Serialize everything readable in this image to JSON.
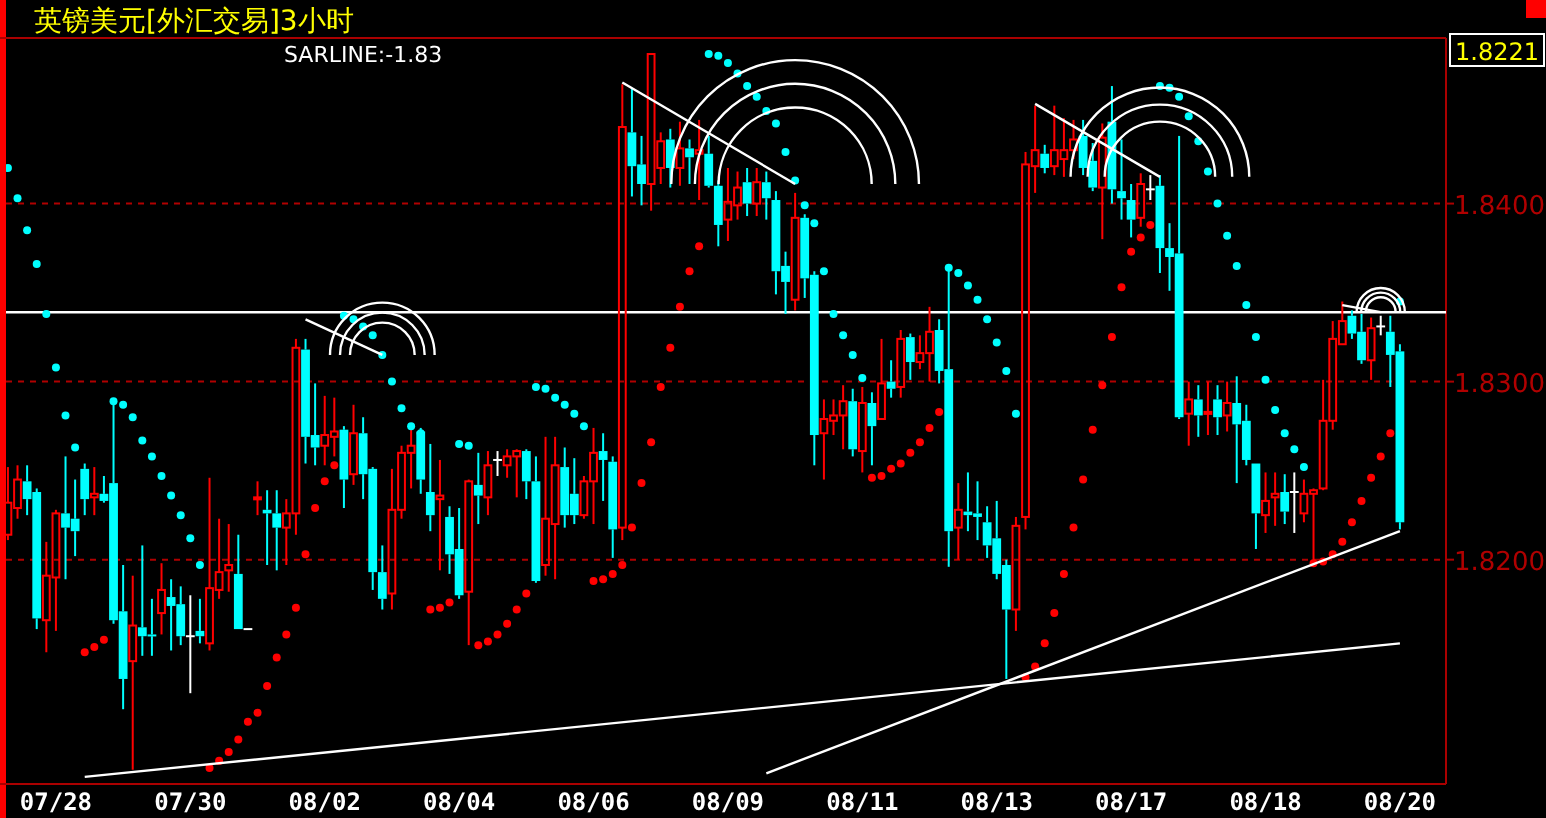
{
  "chart_data": {
    "type": "candlestick",
    "title": "英镑美元[外汇交易]3小时",
    "annotations": [
      "SARLINE:-1.83",
      "1.8221"
    ],
    "colors": [
      "#ff0000",
      "#ff0000",
      "#00ffff",
      "#00ffff",
      "#ff0000",
      "#ff0000",
      "#00ffff",
      "#00ffff",
      "#00ffff",
      "#ff0000",
      "#00ffff",
      "#00ffff",
      "#00ffff",
      "#ff0000",
      "#00ffff",
      "#00ffff",
      "#ff0000",
      "#00ffff",
      "#00ffff",
      "#ffffff",
      "#00ffff",
      "#ff0000",
      "#ff0000",
      "#ff0000",
      "#00ffff",
      "#ffffff",
      "#ff0000",
      "#00ffff",
      "#00ffff",
      "#ff0000",
      "#ff0000",
      "#00ffff",
      "#00ffff",
      "#ff0000",
      "#ff0000",
      "#00ffff",
      "#ff0000",
      "#00ffff",
      "#00ffff",
      "#00ffff",
      "#ff0000",
      "#ff0000",
      "#ff0000",
      "#00ffff",
      "#00ffff",
      "#ff0000",
      "#00ffff",
      "#00ffff",
      "#ff0000",
      "#00ffff",
      "#ff0000",
      "#ffffff",
      "#ff0000",
      "#ff0000",
      "#00ffff",
      "#00ffff",
      "#ff0000",
      "#ff0000",
      "#00ffff",
      "#00ffff",
      "#ff0000",
      "#ff0000",
      "#00ffff",
      "#00ffff",
      "#ff0000",
      "#00ffff",
      "#00ffff",
      "#ff0000",
      "#ff0000",
      "#00ffff",
      "#ff0000",
      "#00ffff",
      "#ff0000",
      "#00ffff",
      "#00ffff",
      "#ff0000",
      "#ff0000",
      "#00ffff",
      "#ff0000",
      "#00ffff",
      "#00ffff",
      "#00ffff",
      "#ff0000",
      "#00ffff",
      "#00ffff",
      "#ff0000",
      "#ff0000",
      "#ff0000",
      "#00ffff",
      "#ff0000",
      "#00ffff",
      "#ff0000",
      "#00ffff",
      "#ff0000",
      "#00ffff",
      "#ff0000",
      "#ff0000",
      "#00ffff",
      "#00ffff",
      "#ff0000",
      "#00ffff",
      "#00ffff",
      "#00ffff",
      "#00ffff",
      "#00ffff",
      "#ff0000",
      "#ff0000",
      "#ff0000",
      "#00ffff",
      "#ff0000",
      "#ff0000",
      "#ff0000",
      "#00ffff",
      "#00ffff",
      "#ff0000",
      "#00ffff",
      "#00ffff",
      "#00ffff",
      "#ff0000",
      "#ffffff",
      "#00ffff",
      "#00ffff",
      "#00ffff",
      "#ff0000",
      "#00ffff",
      "#ff0000",
      "#00ffff",
      "#ff0000",
      "#00ffff",
      "#00ffff",
      "#00ffff",
      "#ff0000",
      "#ff0000",
      "#00ffff",
      "#ffffff",
      "#ff0000",
      "#ff0000",
      "#ff0000",
      "#ff0000",
      "#ff0000",
      "#00ffff",
      "#00ffff",
      "#ff0000",
      "#ffffff",
      "#00ffff",
      "#00ffff"
    ],
    "ylim": [
      1.8074,
      1.8493
    ],
    "categories": [
      null,
      null,
      null,
      null,
      null,
      "07/28",
      null,
      null,
      null,
      null,
      null,
      null,
      null,
      null,
      null,
      null,
      null,
      null,
      null,
      "07/30",
      null,
      null,
      null,
      null,
      null,
      null,
      null,
      null,
      null,
      null,
      null,
      null,
      null,
      "08/02",
      null,
      null,
      null,
      null,
      null,
      null,
      null,
      null,
      null,
      null,
      null,
      null,
      null,
      "08/04",
      null,
      null,
      null,
      null,
      null,
      null,
      null,
      null,
      null,
      null,
      null,
      null,
      null,
      "08/06",
      null,
      null,
      null,
      null,
      null,
      null,
      null,
      null,
      null,
      null,
      null,
      null,
      null,
      "08/09",
      null,
      null,
      null,
      null,
      null,
      null,
      null,
      null,
      null,
      null,
      null,
      null,
      null,
      "08/11",
      null,
      null,
      null,
      null,
      null,
      null,
      null,
      null,
      null,
      null,
      null,
      null,
      null,
      "08/13",
      null,
      null,
      null,
      null,
      null,
      null,
      null,
      null,
      null,
      null,
      null,
      null,
      null,
      "08/17",
      null,
      null,
      null,
      null,
      null,
      null,
      null,
      null,
      null,
      null,
      null,
      null,
      null,
      "08/18",
      null,
      null,
      null,
      null,
      null,
      null,
      null,
      null,
      null,
      null,
      null,
      null,
      null,
      "08/20"
    ],
    "yticks": [
      {
        "value": 1.82,
        "label": "1.8200"
      },
      {
        "value": 1.83,
        "label": "1.8300"
      },
      {
        "value": 1.84,
        "label": "1.8400"
      }
    ],
    "grid": "y",
    "ref_lines": [
      {
        "axis": "y",
        "value": 1.8339,
        "color": "#ffffff"
      }
    ],
    "ohlc": [
      [
        1.8214,
        1.8252,
        1.8211,
        1.8232
      ],
      [
        1.8229,
        1.8253,
        1.8223,
        1.8245
      ],
      [
        1.8244,
        1.8253,
        1.8225,
        1.8234
      ],
      [
        1.8238,
        1.824,
        1.8161,
        1.8167
      ],
      [
        1.8166,
        1.821,
        1.8148,
        1.8191
      ],
      [
        1.819,
        1.8228,
        1.816,
        1.8226
      ],
      [
        1.8226,
        1.8258,
        1.8189,
        1.8218
      ],
      [
        1.8223,
        1.8245,
        1.8202,
        1.8216
      ],
      [
        1.8251,
        1.8254,
        1.8225,
        1.8234
      ],
      [
        1.8235,
        1.8252,
        1.8225,
        1.8237
      ],
      [
        1.8237,
        1.8247,
        1.8232,
        1.8233
      ],
      [
        1.8243,
        1.829,
        1.8164,
        1.8166
      ],
      [
        1.8171,
        1.8197,
        1.8116,
        1.8133
      ],
      [
        1.8143,
        1.8191,
        1.8082,
        1.8163
      ],
      [
        1.8162,
        1.8208,
        1.8146,
        1.8157
      ],
      [
        1.8158,
        1.8178,
        1.8146,
        1.8157
      ],
      [
        1.817,
        1.8198,
        1.8158,
        1.8183
      ],
      [
        1.8179,
        1.8189,
        1.8149,
        1.8174
      ],
      [
        1.8175,
        1.8185,
        1.8152,
        1.8157
      ],
      [
        1.8157,
        1.818,
        1.8125,
        1.8157
      ],
      [
        1.816,
        1.8178,
        1.8153,
        1.8157
      ],
      [
        1.8153,
        1.8246,
        1.8149,
        1.8184
      ],
      [
        1.8183,
        1.8223,
        1.8178,
        1.8193
      ],
      [
        1.8194,
        1.822,
        1.8182,
        1.8197
      ],
      [
        1.8192,
        1.8214,
        1.8161,
        1.8161
      ],
      [
        1.8161,
        1.8161,
        1.8161,
        1.8161
      ],
      [
        1.8234,
        1.8244,
        1.8225,
        1.8235
      ],
      [
        1.8228,
        1.8239,
        1.8197,
        1.8226
      ],
      [
        1.8226,
        1.8239,
        1.8194,
        1.8218
      ],
      [
        1.8218,
        1.8234,
        1.8197,
        1.8226
      ],
      [
        1.8226,
        1.8324,
        1.8214,
        1.8319
      ],
      [
        1.8318,
        1.8324,
        1.8254,
        1.8269
      ],
      [
        1.827,
        1.8299,
        1.8253,
        1.8263
      ],
      [
        1.8264,
        1.8292,
        1.8253,
        1.827
      ],
      [
        1.8269,
        1.8291,
        1.8258,
        1.8272
      ],
      [
        1.8273,
        1.8275,
        1.8229,
        1.8245
      ],
      [
        1.8248,
        1.8287,
        1.8242,
        1.8271
      ],
      [
        1.8271,
        1.828,
        1.8234,
        1.8248
      ],
      [
        1.8251,
        1.8252,
        1.8183,
        1.8193
      ],
      [
        1.8193,
        1.8208,
        1.8172,
        1.8178
      ],
      [
        1.8181,
        1.8251,
        1.8172,
        1.8228
      ],
      [
        1.8228,
        1.8264,
        1.8223,
        1.826
      ],
      [
        1.826,
        1.8275,
        1.824,
        1.8264
      ],
      [
        1.8272,
        1.8274,
        1.8237,
        1.8245
      ],
      [
        1.8238,
        1.8265,
        1.8216,
        1.8225
      ],
      [
        1.8234,
        1.8256,
        1.8194,
        1.8236
      ],
      [
        1.8224,
        1.823,
        1.8192,
        1.8203
      ],
      [
        1.8206,
        1.8229,
        1.8178,
        1.818
      ],
      [
        1.8182,
        1.8245,
        1.8152,
        1.8244
      ],
      [
        1.8242,
        1.826,
        1.822,
        1.8236
      ],
      [
        1.8235,
        1.8261,
        1.8225,
        1.8253
      ],
      [
        1.8256,
        1.8261,
        1.8247,
        1.8256
      ],
      [
        1.8253,
        1.8262,
        1.8246,
        1.8258
      ],
      [
        1.8258,
        1.8262,
        1.8235,
        1.8261
      ],
      [
        1.8261,
        1.8262,
        1.8234,
        1.8244
      ],
      [
        1.8244,
        1.8258,
        1.8187,
        1.8188
      ],
      [
        1.8197,
        1.8269,
        1.8191,
        1.8223
      ],
      [
        1.822,
        1.8269,
        1.8189,
        1.8253
      ],
      [
        1.8252,
        1.8263,
        1.8218,
        1.8225
      ],
      [
        1.8237,
        1.8257,
        1.822,
        1.8225
      ],
      [
        1.8225,
        1.8247,
        1.8223,
        1.8244
      ],
      [
        1.8244,
        1.8274,
        1.822,
        1.826
      ],
      [
        1.8261,
        1.8271,
        1.8233,
        1.8256
      ],
      [
        1.8255,
        1.8258,
        1.8201,
        1.8217
      ],
      [
        1.8218,
        1.8467,
        1.8211,
        1.8443
      ],
      [
        1.844,
        1.8465,
        1.8404,
        1.8421
      ],
      [
        1.8422,
        1.8438,
        1.8399,
        1.8411
      ],
      [
        1.8411,
        1.8484,
        1.8396,
        1.8484
      ],
      [
        1.842,
        1.844,
        1.8411,
        1.8435
      ],
      [
        1.8436,
        1.8442,
        1.8409,
        1.842
      ],
      [
        1.842,
        1.8446,
        1.841,
        1.8431
      ],
      [
        1.8431,
        1.8436,
        1.8411,
        1.8426
      ],
      [
        1.8428,
        1.8447,
        1.8402,
        1.843
      ],
      [
        1.8428,
        1.8438,
        1.8409,
        1.841
      ],
      [
        1.841,
        1.8413,
        1.8376,
        1.8388
      ],
      [
        1.8391,
        1.842,
        1.8379,
        1.8401
      ],
      [
        1.8399,
        1.8418,
        1.8391,
        1.8409
      ],
      [
        1.8412,
        1.842,
        1.8393,
        1.84
      ],
      [
        1.84,
        1.842,
        1.8393,
        1.8412
      ],
      [
        1.8412,
        1.8418,
        1.8391,
        1.8403
      ],
      [
        1.8402,
        1.8407,
        1.8349,
        1.8362
      ],
      [
        1.8365,
        1.8373,
        1.8338,
        1.8356
      ],
      [
        1.8346,
        1.8406,
        1.834,
        1.8392
      ],
      [
        1.8392,
        1.8394,
        1.8347,
        1.8358
      ],
      [
        1.836,
        1.8362,
        1.8253,
        1.827
      ],
      [
        1.8271,
        1.829,
        1.8245,
        1.8279
      ],
      [
        1.8278,
        1.829,
        1.827,
        1.8281
      ],
      [
        1.8281,
        1.8298,
        1.8262,
        1.8289
      ],
      [
        1.8289,
        1.8296,
        1.8258,
        1.8262
      ],
      [
        1.8261,
        1.8297,
        1.8249,
        1.8288
      ],
      [
        1.8288,
        1.8294,
        1.8253,
        1.8275
      ],
      [
        1.8279,
        1.8324,
        1.8279,
        1.8299
      ],
      [
        1.83,
        1.8312,
        1.8291,
        1.8296
      ],
      [
        1.8297,
        1.8329,
        1.8291,
        1.8324
      ],
      [
        1.8325,
        1.8327,
        1.8301,
        1.8311
      ],
      [
        1.8311,
        1.8326,
        1.8307,
        1.8316
      ],
      [
        1.8316,
        1.8342,
        1.83,
        1.8328
      ],
      [
        1.8329,
        1.8335,
        1.8299,
        1.8306
      ],
      [
        1.8307,
        1.8365,
        1.8196,
        1.8216
      ],
      [
        1.8218,
        1.8243,
        1.82,
        1.8228
      ],
      [
        1.8227,
        1.8249,
        1.8216,
        1.8225
      ],
      [
        1.8226,
        1.8244,
        1.8211,
        1.8224
      ],
      [
        1.8221,
        1.823,
        1.8201,
        1.8208
      ],
      [
        1.8212,
        1.8233,
        1.8189,
        1.8192
      ],
      [
        1.8197,
        1.82,
        1.8133,
        1.8172
      ],
      [
        1.8172,
        1.8224,
        1.816,
        1.8219
      ],
      [
        1.8224,
        1.8429,
        1.8217,
        1.8422
      ],
      [
        1.8421,
        1.8455,
        1.8406,
        1.843
      ],
      [
        1.8428,
        1.8433,
        1.8417,
        1.842
      ],
      [
        1.8421,
        1.8455,
        1.8416,
        1.843
      ],
      [
        1.8425,
        1.8448,
        1.8415,
        1.843
      ],
      [
        1.843,
        1.8447,
        1.8425,
        1.8436
      ],
      [
        1.8438,
        1.8447,
        1.8416,
        1.842
      ],
      [
        1.8424,
        1.8434,
        1.8407,
        1.8409
      ],
      [
        1.8409,
        1.8445,
        1.838,
        1.8437
      ],
      [
        1.8446,
        1.8466,
        1.84,
        1.8408
      ],
      [
        1.8407,
        1.8436,
        1.8391,
        1.8403
      ],
      [
        1.8402,
        1.8411,
        1.8381,
        1.8391
      ],
      [
        1.8392,
        1.8417,
        1.8387,
        1.8411
      ],
      [
        1.8408,
        1.8416,
        1.8402,
        1.8408
      ],
      [
        1.841,
        1.8416,
        1.8361,
        1.8375
      ],
      [
        1.8375,
        1.8389,
        1.8351,
        1.837
      ],
      [
        1.8372,
        1.8438,
        1.8279,
        1.828
      ],
      [
        1.8282,
        1.83,
        1.8264,
        1.829
      ],
      [
        1.829,
        1.8298,
        1.8269,
        1.8281
      ],
      [
        1.8282,
        1.83,
        1.827,
        1.8283
      ],
      [
        1.829,
        1.8298,
        1.827,
        1.828
      ],
      [
        1.8281,
        1.83,
        1.8272,
        1.8288
      ],
      [
        1.8288,
        1.8303,
        1.8243,
        1.8276
      ],
      [
        1.8278,
        1.8287,
        1.8253,
        1.8256
      ],
      [
        1.8254,
        1.8254,
        1.8206,
        1.8226
      ],
      [
        1.8225,
        1.8249,
        1.8215,
        1.8233
      ],
      [
        1.8235,
        1.8249,
        1.8219,
        1.8237
      ],
      [
        1.8238,
        1.8248,
        1.822,
        1.8227
      ],
      [
        1.8238,
        1.8249,
        1.8215,
        1.8238
      ],
      [
        1.8226,
        1.8245,
        1.8221,
        1.8237
      ],
      [
        1.8237,
        1.824,
        1.8197,
        1.8239
      ],
      [
        1.824,
        1.8301,
        1.8239,
        1.8278
      ],
      [
        1.8278,
        1.8334,
        1.8273,
        1.8324
      ],
      [
        1.8321,
        1.8345,
        1.8321,
        1.8334
      ],
      [
        1.8337,
        1.834,
        1.8324,
        1.8327
      ],
      [
        1.8328,
        1.8338,
        1.831,
        1.8312
      ],
      [
        1.8312,
        1.8336,
        1.8301,
        1.833
      ],
      [
        1.8331,
        1.8337,
        1.8326,
        1.8331
      ],
      [
        1.8328,
        1.8337,
        1.8297,
        1.8315
      ],
      [
        1.8317,
        1.8321,
        1.8217,
        1.8221
      ]
    ],
    "series": [
      {
        "type": "scatter",
        "color": "#00ffff",
        "marker": "circle",
        "values": [
          1.842,
          1.8403,
          1.8385,
          1.8366,
          1.8338,
          1.8308,
          1.8281,
          1.8263,
          null,
          null,
          null,
          1.8289,
          1.8287,
          1.828,
          1.8267,
          1.8258,
          1.8247,
          1.8236,
          1.8225,
          1.8212,
          1.8197,
          null,
          null,
          null,
          null,
          null,
          null,
          null,
          null,
          null,
          null,
          null,
          null,
          null,
          null,
          1.8337,
          1.8335,
          1.8331,
          1.8326,
          1.8315,
          1.83,
          1.8285,
          1.8275,
          1.8271,
          null,
          null,
          null,
          1.8265,
          1.8264,
          null,
          null,
          null,
          null,
          null,
          null,
          1.8297,
          1.8296,
          1.8291,
          1.8287,
          1.8282,
          1.8275,
          null,
          null,
          null,
          null,
          null,
          null,
          null,
          null,
          null,
          null,
          null,
          null,
          1.8484,
          1.8483,
          1.8479,
          1.8473,
          1.8466,
          1.846,
          1.8452,
          1.8445,
          1.8429,
          1.8413,
          1.8399,
          1.8389,
          1.8362,
          1.8338,
          1.8326,
          1.8315,
          1.8302,
          null,
          null,
          null,
          null,
          null,
          null,
          null,
          null,
          1.8364,
          1.8361,
          1.8354,
          1.8346,
          1.8335,
          1.8322,
          1.8306,
          1.8282,
          null,
          null,
          null,
          null,
          null,
          null,
          null,
          null,
          null,
          null,
          null,
          null,
          null,
          null,
          1.8466,
          1.8465,
          1.846,
          1.8449,
          1.8435,
          1.8418,
          1.84,
          1.8382,
          1.8365,
          1.8343,
          1.8325,
          1.8301,
          1.8284,
          1.8271,
          1.8262,
          1.8252,
          null,
          null,
          null,
          null,
          null,
          null,
          null,
          null,
          null,
          1.8345
        ]
      },
      {
        "type": "scatter",
        "color": "#ff0000",
        "marker": "circle",
        "values": [
          null,
          null,
          null,
          null,
          null,
          null,
          null,
          null,
          1.8148,
          1.8151,
          1.8155,
          null,
          null,
          null,
          null,
          null,
          null,
          null,
          null,
          null,
          null,
          1.8083,
          1.8087,
          1.8092,
          1.8099,
          1.8109,
          1.8114,
          1.8129,
          1.8145,
          1.8158,
          1.8173,
          1.8203,
          1.8229,
          1.8244,
          1.8253,
          null,
          null,
          null,
          null,
          null,
          null,
          null,
          null,
          null,
          1.8172,
          1.8173,
          1.8176,
          null,
          null,
          1.8152,
          1.8154,
          1.8158,
          1.8164,
          1.8172,
          1.8181,
          null,
          null,
          null,
          null,
          null,
          null,
          1.8188,
          1.8189,
          1.8192,
          1.8197,
          1.8218,
          1.8243,
          1.8266,
          1.8297,
          1.8319,
          1.8342,
          1.8362,
          1.8376,
          null,
          null,
          null,
          null,
          null,
          null,
          null,
          null,
          null,
          null,
          null,
          null,
          null,
          null,
          null,
          null,
          null,
          1.8246,
          1.8247,
          1.8251,
          1.8254,
          1.826,
          1.8266,
          1.8274,
          1.8283,
          null,
          null,
          null,
          null,
          null,
          null,
          null,
          null,
          1.8134,
          1.814,
          1.8153,
          1.817,
          1.8192,
          1.8218,
          1.8245,
          1.8273,
          1.8298,
          1.8325,
          1.8353,
          1.8373,
          1.8381,
          1.8388,
          null,
          null,
          null,
          null,
          null,
          null,
          null,
          null,
          null,
          null,
          null,
          null,
          null,
          null,
          null,
          null,
          1.8198,
          1.8199,
          1.8203,
          1.821,
          1.8221,
          1.8233,
          1.8246,
          1.8258,
          1.8271,
          null
        ]
      },
      {
        "type": "line",
        "color": "#ffffff",
        "values": [
          null,
          null,
          null,
          null,
          null,
          null,
          null,
          null,
          1.8078,
          null,
          null,
          null,
          null,
          null,
          null,
          null,
          null,
          null,
          null,
          null,
          null,
          null,
          null,
          null,
          null,
          null,
          null,
          null,
          null,
          null,
          null,
          null,
          null,
          null,
          null,
          null,
          null,
          null,
          null,
          null,
          null,
          null,
          null,
          null,
          null,
          null,
          null,
          null,
          null,
          null,
          null,
          null,
          null,
          null,
          null,
          null,
          null,
          null,
          null,
          null,
          null,
          null,
          null,
          null,
          null,
          null,
          null,
          null,
          null,
          null,
          null,
          null,
          null,
          null,
          null,
          null,
          null,
          null,
          null,
          null,
          null,
          null,
          null,
          null,
          null,
          null,
          null,
          null,
          null,
          null,
          null,
          null,
          null,
          null,
          null,
          null,
          null,
          null,
          null,
          null,
          null,
          null,
          null,
          null,
          null,
          null,
          null,
          null,
          null,
          null,
          null,
          null,
          null,
          null,
          null,
          null,
          null,
          null,
          null,
          null,
          null,
          null,
          null,
          null,
          null,
          null,
          null,
          null,
          null,
          null,
          null,
          null,
          null,
          null,
          null,
          null,
          null,
          null,
          null,
          null,
          null,
          null,
          null,
          null,
          null,
          1.8153
        ]
      },
      {
        "type": "line",
        "color": "#ffffff",
        "values": [
          null,
          null,
          null,
          null,
          null,
          null,
          null,
          null,
          null,
          null,
          null,
          null,
          null,
          null,
          null,
          null,
          null,
          null,
          null,
          null,
          null,
          null,
          null,
          null,
          null,
          null,
          null,
          null,
          null,
          null,
          null,
          null,
          null,
          null,
          null,
          null,
          null,
          null,
          null,
          null,
          null,
          null,
          null,
          null,
          null,
          null,
          null,
          null,
          null,
          null,
          null,
          null,
          null,
          null,
          null,
          null,
          null,
          null,
          null,
          null,
          null,
          null,
          null,
          null,
          null,
          null,
          null,
          null,
          null,
          null,
          null,
          null,
          null,
          null,
          null,
          null,
          null,
          null,
          null,
          1.808,
          null,
          null,
          null,
          null,
          null,
          null,
          null,
          null,
          null,
          null,
          null,
          null,
          null,
          null,
          null,
          null,
          null,
          null,
          null,
          null,
          null,
          null,
          null,
          null,
          null,
          null,
          null,
          null,
          null,
          null,
          null,
          null,
          null,
          null,
          null,
          null,
          null,
          null,
          null,
          null,
          null,
          null,
          null,
          null,
          null,
          null,
          null,
          null,
          null,
          null,
          null,
          null,
          null,
          null,
          null,
          null,
          null,
          null,
          null,
          null,
          null,
          null,
          null,
          null,
          null,
          1.8216
        ]
      },
      {
        "type": "line",
        "color": "#ffffff",
        "values": [
          null,
          null,
          null,
          null,
          null,
          null,
          null,
          null,
          null,
          null,
          null,
          null,
          null,
          null,
          null,
          null,
          null,
          null,
          null,
          null,
          null,
          null,
          null,
          null,
          null,
          null,
          null,
          null,
          null,
          null,
          null,
          1.8335,
          null,
          null,
          null,
          null,
          null,
          null,
          null,
          1.8315,
          null,
          null,
          null,
          null,
          null,
          null,
          null,
          null,
          null,
          null,
          null,
          null,
          null,
          null,
          null,
          null,
          null,
          null,
          null,
          null,
          null,
          null,
          null,
          null,
          null,
          null,
          null,
          null,
          null,
          null,
          null,
          null,
          null,
          null,
          null,
          null,
          null,
          null,
          null,
          null,
          null,
          null,
          null,
          null,
          null,
          null,
          null,
          null,
          null,
          null,
          null,
          null,
          null,
          null,
          null,
          null,
          null,
          null,
          null,
          null,
          null,
          null,
          null,
          null,
          null,
          null,
          null,
          null,
          null,
          null,
          null,
          null,
          null,
          null,
          null,
          null,
          null,
          null,
          null,
          null,
          null,
          null,
          null,
          null,
          null,
          null,
          null,
          null,
          null,
          null,
          null,
          null,
          null,
          null,
          null,
          null,
          null,
          null,
          null,
          null,
          null,
          null,
          null,
          null,
          null,
          null
        ]
      },
      {
        "type": "line",
        "color": "#ffffff",
        "values": [
          null,
          null,
          null,
          null,
          null,
          null,
          null,
          null,
          null,
          null,
          null,
          null,
          null,
          null,
          null,
          null,
          null,
          null,
          null,
          null,
          null,
          null,
          null,
          null,
          null,
          null,
          null,
          null,
          null,
          null,
          null,
          null,
          null,
          null,
          null,
          null,
          null,
          null,
          null,
          null,
          null,
          null,
          null,
          null,
          null,
          null,
          null,
          null,
          null,
          null,
          null,
          null,
          null,
          null,
          null,
          null,
          null,
          null,
          null,
          null,
          null,
          null,
          null,
          null,
          1.8468,
          null,
          null,
          null,
          null,
          null,
          null,
          null,
          null,
          null,
          null,
          null,
          null,
          null,
          null,
          null,
          null,
          null,
          1.8411,
          null,
          null,
          null,
          null,
          null,
          null,
          null,
          null,
          null,
          null,
          null,
          null,
          null,
          null,
          null,
          null,
          null,
          null,
          null,
          null,
          null,
          null,
          null,
          null,
          null,
          null,
          null,
          null,
          null,
          null,
          null,
          null,
          null,
          null,
          null,
          null,
          null,
          null,
          null,
          null,
          null,
          null,
          null,
          null,
          null,
          null,
          null,
          null,
          null,
          null,
          null,
          null,
          null,
          null,
          null,
          null,
          null,
          null,
          null,
          null,
          null,
          null,
          null
        ]
      },
      {
        "type": "line",
        "color": "#ffffff",
        "values": [
          null,
          null,
          null,
          null,
          null,
          null,
          null,
          null,
          null,
          null,
          null,
          null,
          null,
          null,
          null,
          null,
          null,
          null,
          null,
          null,
          null,
          null,
          null,
          null,
          null,
          null,
          null,
          null,
          null,
          null,
          null,
          null,
          null,
          null,
          null,
          null,
          null,
          null,
          null,
          null,
          null,
          null,
          null,
          null,
          null,
          null,
          null,
          null,
          null,
          null,
          null,
          null,
          null,
          null,
          null,
          null,
          null,
          null,
          null,
          null,
          null,
          null,
          null,
          null,
          null,
          null,
          null,
          null,
          null,
          null,
          null,
          null,
          null,
          null,
          null,
          null,
          null,
          null,
          null,
          null,
          null,
          null,
          null,
          null,
          null,
          null,
          null,
          null,
          null,
          null,
          null,
          null,
          null,
          null,
          null,
          null,
          null,
          null,
          null,
          null,
          null,
          null,
          null,
          null,
          null,
          null,
          null,
          1.8456,
          null,
          null,
          null,
          null,
          null,
          null,
          null,
          null,
          null,
          null,
          null,
          null,
          1.8415,
          null,
          null,
          null,
          null,
          null,
          null,
          null,
          null,
          null,
          null,
          null,
          null,
          null,
          null,
          null,
          null,
          null,
          null,
          null,
          null,
          null,
          null,
          null,
          null,
          null
        ]
      },
      {
        "type": "line",
        "color": "#ffffff",
        "values": [
          null,
          null,
          null,
          null,
          null,
          null,
          null,
          null,
          null,
          null,
          null,
          null,
          null,
          null,
          null,
          null,
          null,
          null,
          null,
          null,
          null,
          null,
          null,
          null,
          null,
          null,
          null,
          null,
          null,
          null,
          null,
          null,
          null,
          null,
          null,
          null,
          null,
          null,
          null,
          null,
          null,
          null,
          null,
          null,
          null,
          null,
          null,
          null,
          null,
          null,
          null,
          null,
          null,
          null,
          null,
          null,
          null,
          null,
          null,
          null,
          null,
          null,
          null,
          null,
          null,
          null,
          null,
          null,
          null,
          null,
          null,
          null,
          null,
          null,
          null,
          null,
          null,
          null,
          null,
          null,
          null,
          null,
          null,
          null,
          null,
          null,
          null,
          null,
          null,
          null,
          null,
          null,
          null,
          null,
          null,
          null,
          null,
          null,
          null,
          null,
          null,
          null,
          null,
          null,
          null,
          null,
          null,
          null,
          null,
          null,
          null,
          null,
          null,
          null,
          null,
          null,
          null,
          null,
          null,
          null,
          null,
          null,
          null,
          null,
          null,
          null,
          null,
          null,
          null,
          null,
          null,
          null,
          null,
          null,
          null,
          null,
          null,
          null,
          null,
          1.8343,
          null,
          null,
          null,
          1.8339,
          null,
          null
        ]
      }
    ]
  }
}
